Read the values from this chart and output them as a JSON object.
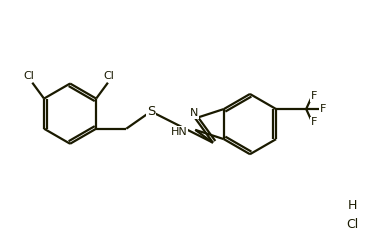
{
  "bg_color": "#ffffff",
  "line_color": "#1a1a00",
  "lw": 1.6,
  "fs": 8.0,
  "figsize": [
    3.87,
    2.44
  ],
  "dpi": 100,
  "xlim": [
    0,
    9.0
  ],
  "ylim": [
    0,
    5.8
  ]
}
